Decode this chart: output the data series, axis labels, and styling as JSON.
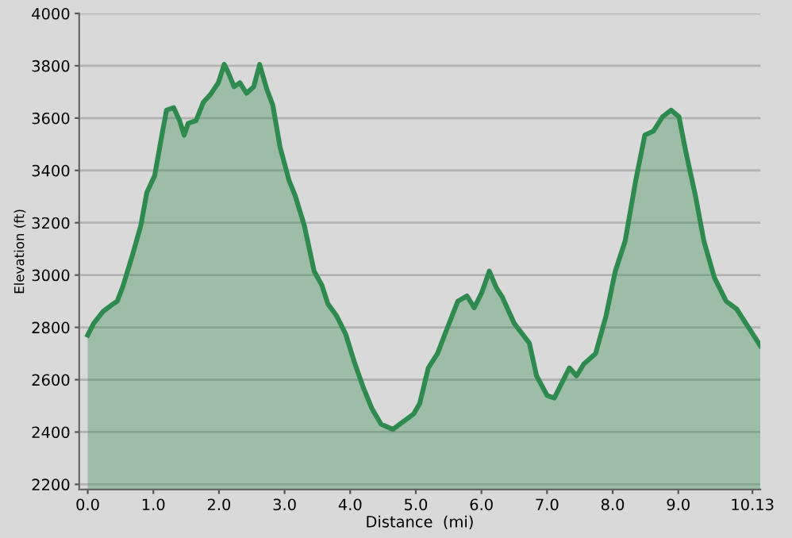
{
  "chart_data": {
    "type": "area",
    "xlabel": "Distance  (mi)",
    "ylabel": "Elevation (ft)",
    "color": "#2e8a4f",
    "x": [
      0.0,
      0.09,
      0.23,
      0.36,
      0.45,
      0.54,
      0.68,
      0.81,
      0.9,
      1.02,
      1.13,
      1.2,
      1.31,
      1.4,
      1.47,
      1.53,
      1.65,
      1.76,
      1.87,
      1.99,
      2.08,
      2.14,
      2.23,
      2.32,
      2.42,
      2.53,
      2.62,
      2.73,
      2.82,
      2.93,
      3.07,
      3.16,
      3.3,
      3.45,
      3.57,
      3.66,
      3.79,
      3.93,
      4.06,
      4.2,
      4.33,
      4.47,
      4.65,
      4.81,
      4.97,
      5.06,
      5.19,
      5.33,
      5.46,
      5.64,
      5.78,
      5.89,
      6.0,
      6.12,
      6.23,
      6.32,
      6.5,
      6.73,
      6.84,
      7.0,
      7.11,
      7.22,
      7.34,
      7.45,
      7.56,
      7.74,
      7.9,
      8.04,
      8.19,
      8.35,
      8.49,
      8.62,
      8.76,
      8.89,
      9.01,
      9.12,
      9.26,
      9.39,
      9.55,
      9.73,
      9.89,
      10.07,
      10.25
    ],
    "values": [
      2770,
      2815,
      2860,
      2885,
      2900,
      2960,
      3075,
      3190,
      3315,
      3380,
      3535,
      3630,
      3640,
      3590,
      3535,
      3580,
      3590,
      3660,
      3690,
      3735,
      3805,
      3775,
      3720,
      3735,
      3695,
      3720,
      3805,
      3710,
      3650,
      3490,
      3360,
      3305,
      3190,
      3015,
      2960,
      2890,
      2845,
      2775,
      2670,
      2570,
      2490,
      2430,
      2410,
      2440,
      2470,
      2510,
      2645,
      2700,
      2785,
      2900,
      2920,
      2875,
      2930,
      3015,
      2950,
      2915,
      2815,
      2740,
      2615,
      2540,
      2530,
      2585,
      2645,
      2615,
      2660,
      2700,
      2845,
      3015,
      3130,
      3360,
      3535,
      3550,
      3605,
      3630,
      3605,
      3465,
      3305,
      3130,
      2990,
      2900,
      2870,
      2800,
      2730
    ],
    "xlim": [
      -0.13,
      10.25
    ],
    "ylim": [
      2180,
      4000
    ],
    "xticks": [
      {
        "value": 0,
        "label": "0.0"
      },
      {
        "value": 1,
        "label": "1.0"
      },
      {
        "value": 2,
        "label": "2.0"
      },
      {
        "value": 3,
        "label": "3.0"
      },
      {
        "value": 4,
        "label": "4.0"
      },
      {
        "value": 5,
        "label": "5.0"
      },
      {
        "value": 6,
        "label": "6.0"
      },
      {
        "value": 7,
        "label": "7.0"
      },
      {
        "value": 8,
        "label": "8.0"
      },
      {
        "value": 9,
        "label": "9.0"
      },
      10.13
    ],
    "yticks": [
      2200,
      2400,
      2600,
      2800,
      3000,
      3200,
      3400,
      3600,
      3800,
      4000
    ],
    "grid": "y",
    "line_style": "solid",
    "marker": "none"
  }
}
